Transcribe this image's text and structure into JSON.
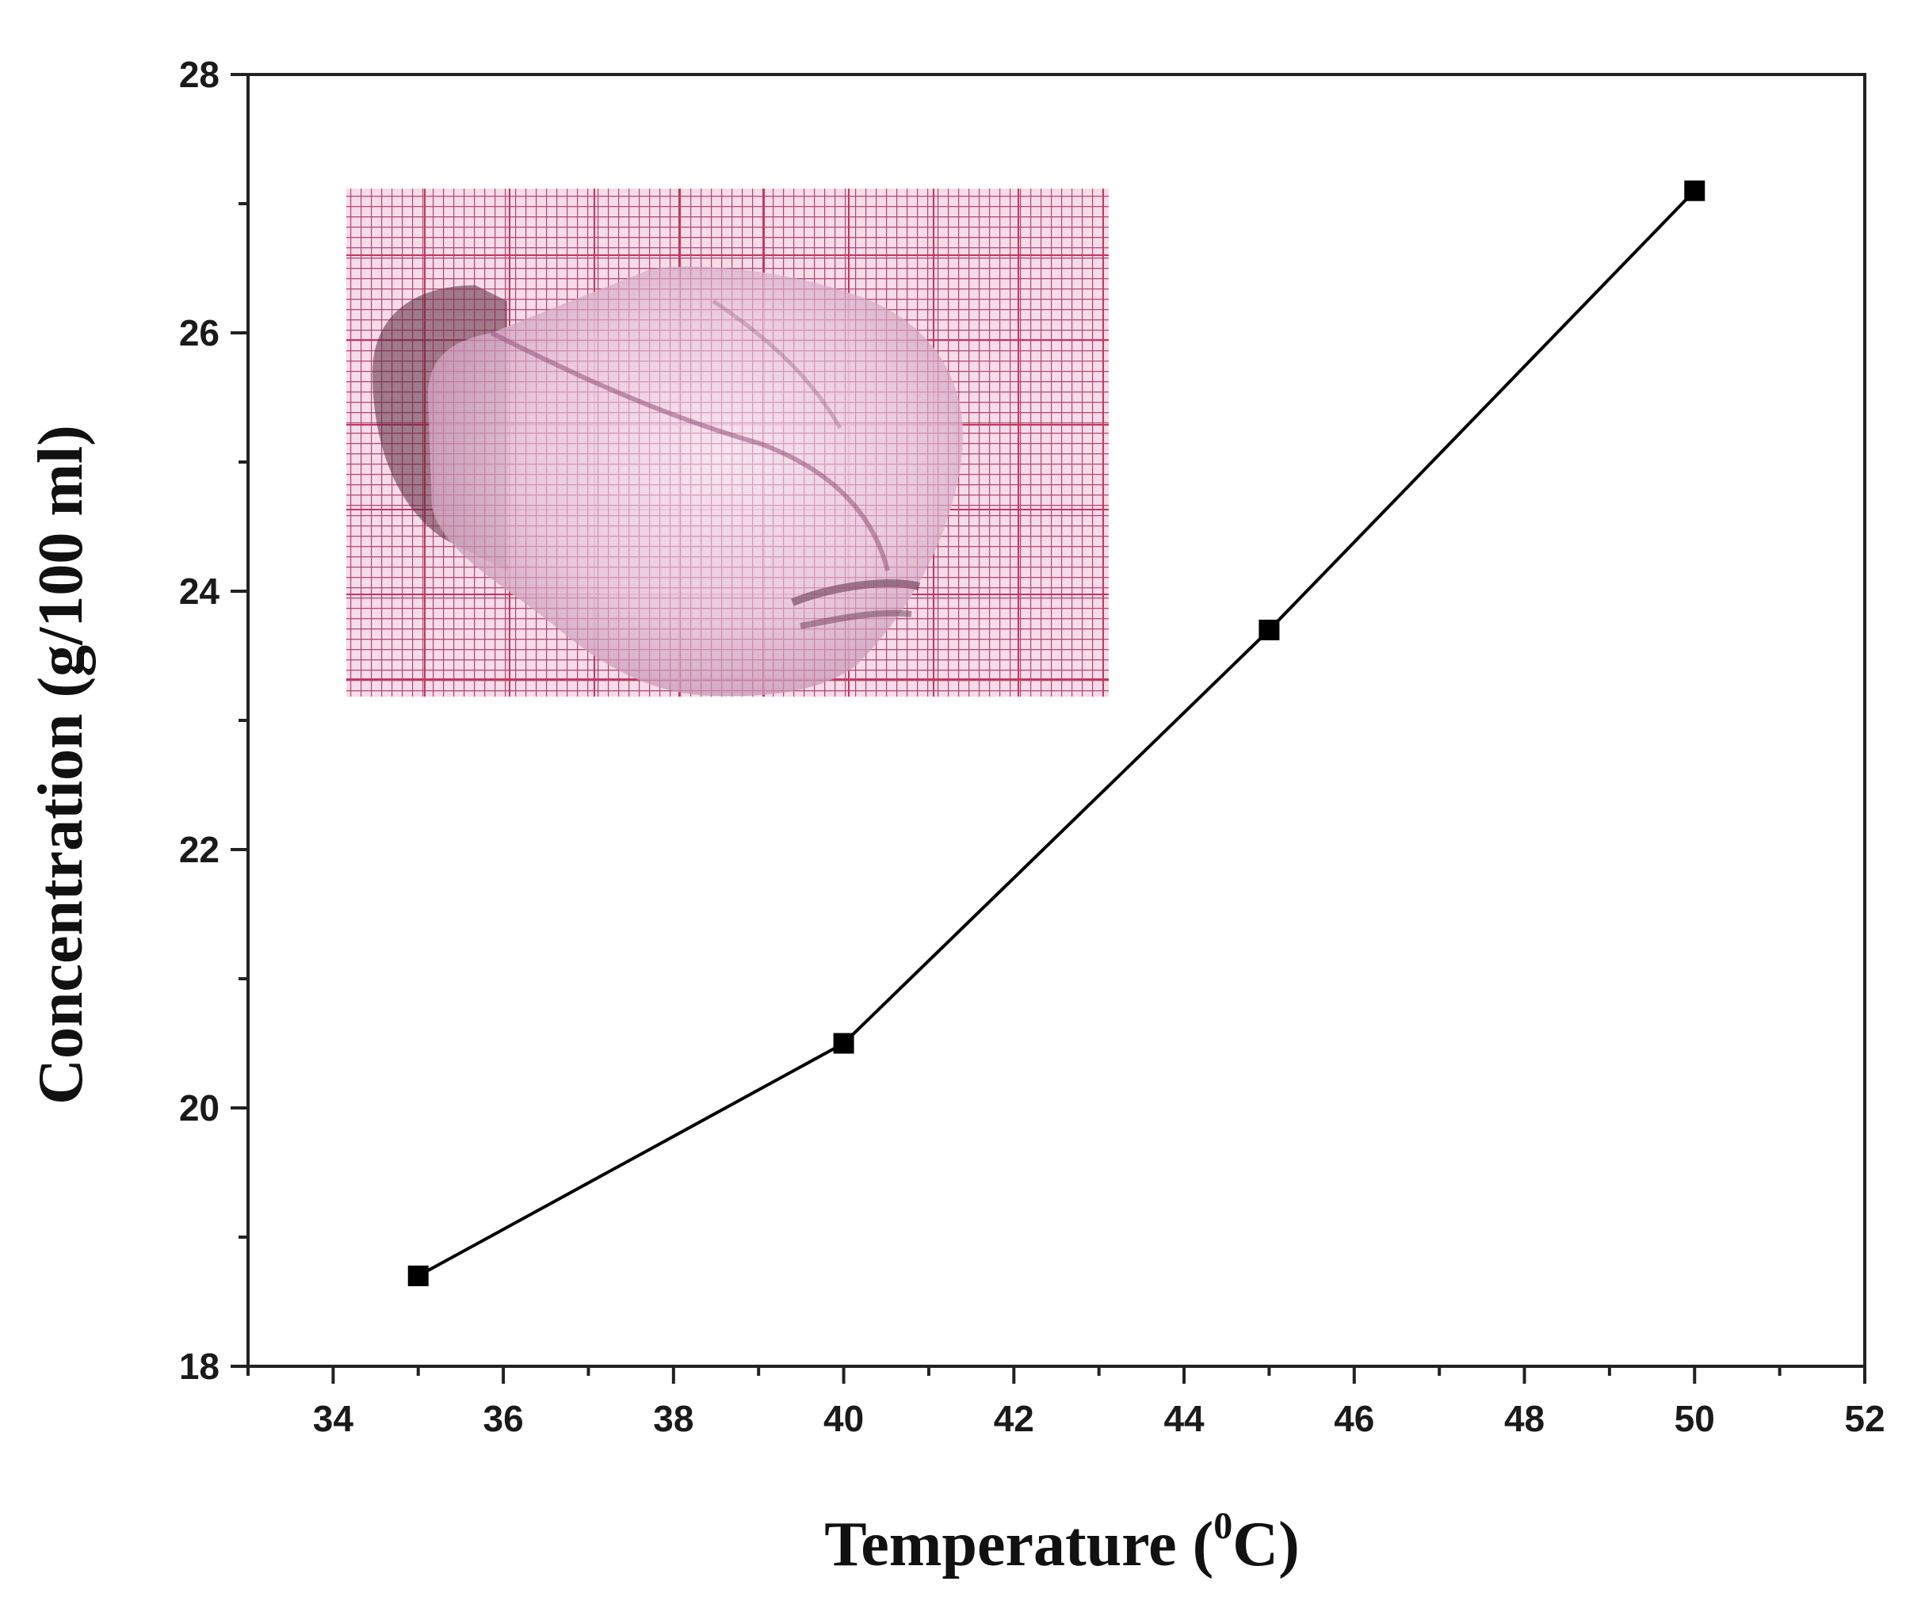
{
  "chart_data": {
    "type": "line",
    "xlabel": "Temperature (",
    "xlabel_sup": "0",
    "xlabel_end": "C)",
    "ylabel": "Concentration (g/100 ml)",
    "xlim": [
      33,
      52
    ],
    "ylim": [
      18,
      28
    ],
    "x_ticks": [
      34,
      36,
      38,
      40,
      42,
      44,
      46,
      48,
      50,
      52
    ],
    "y_ticks": [
      18,
      20,
      22,
      24,
      26,
      28
    ],
    "x_minor_step": 1,
    "y_minor_step": 1,
    "grid": false,
    "series": [
      {
        "x": [
          35,
          40,
          45,
          50
        ],
        "y": [
          18.7,
          20.5,
          23.7,
          27.1
        ],
        "marker": "square",
        "color": "#000000"
      }
    ],
    "inset": {
      "type": "photo",
      "subject": "crystal on graph paper"
    }
  },
  "colors": {
    "line": "#000000",
    "axes": "#222222",
    "inset_paper": "#f6dbe8",
    "inset_grid_major": "#c8345e",
    "inset_grid_minor": "#b04870",
    "inset_crystal": "#f0d8ea"
  }
}
